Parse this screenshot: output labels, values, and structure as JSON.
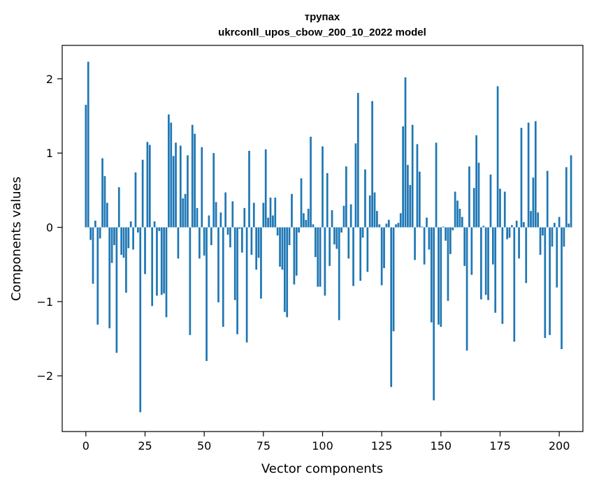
{
  "chart_data": {
    "type": "bar",
    "title_line1": "трупах",
    "title_line2": "ukrconll_upos_cbow_200_10_2022 model",
    "xlabel": "Vector components",
    "ylabel": "Components values",
    "xlim": [
      -10,
      210
    ],
    "ylim": [
      -2.75,
      2.45
    ],
    "xticks": [
      0,
      25,
      50,
      75,
      100,
      125,
      150,
      175,
      200
    ],
    "yticks": [
      2,
      1,
      0,
      -1,
      -2
    ],
    "ytick_labels": [
      "2",
      "1",
      "0",
      "−1",
      "−2"
    ],
    "bar_color": "#1f77b4",
    "values": [
      1.65,
      2.23,
      -0.17,
      -0.76,
      0.09,
      -1.31,
      -0.15,
      0.93,
      0.69,
      0.33,
      -1.36,
      -0.48,
      -0.24,
      -1.69,
      0.54,
      -0.37,
      -0.41,
      -0.88,
      -0.28,
      0.08,
      -0.3,
      0.74,
      -0.07,
      -2.49,
      0.91,
      -0.63,
      1.15,
      1.11,
      -1.06,
      0.08,
      -0.92,
      -0.05,
      -0.91,
      -0.89,
      -1.21,
      1.52,
      1.41,
      0.96,
      1.14,
      -0.42,
      1.1,
      0.39,
      0.45,
      0.97,
      -1.45,
      1.38,
      1.26,
      0.26,
      -0.42,
      1.08,
      -0.38,
      -1.8,
      0.16,
      -0.24,
      1.0,
      0.34,
      -1.01,
      0.2,
      -1.34,
      0.47,
      -0.1,
      -0.27,
      0.35,
      -0.98,
      -1.44,
      -0.02,
      -0.34,
      0.26,
      -1.55,
      1.03,
      -0.37,
      0.33,
      -0.57,
      -0.41,
      -0.96,
      0.33,
      1.05,
      0.13,
      0.4,
      0.16,
      0.4,
      -0.11,
      -0.53,
      -0.57,
      -1.14,
      -1.21,
      -0.24,
      0.45,
      -0.77,
      -0.65,
      -0.07,
      0.66,
      0.19,
      0.1,
      0.25,
      1.22,
      0.04,
      -0.4,
      -0.8,
      -0.8,
      1.09,
      -0.92,
      0.73,
      -0.52,
      0.23,
      -0.23,
      -0.29,
      -1.25,
      -0.07,
      0.29,
      0.82,
      -0.42,
      0.31,
      -0.79,
      1.13,
      1.81,
      -0.72,
      -0.14,
      0.78,
      -0.6,
      0.43,
      1.7,
      0.47,
      0.22,
      0.04,
      -0.78,
      -0.55,
      0.05,
      0.1,
      -2.15,
      -1.4,
      0.04,
      0.06,
      0.19,
      1.36,
      2.02,
      0.84,
      0.57,
      1.38,
      -0.44,
      1.12,
      0.75,
      0.01,
      -0.5,
      0.13,
      -0.3,
      -1.28,
      -2.33,
      1.14,
      -1.31,
      -1.34,
      0.01,
      -0.18,
      -0.99,
      -0.36,
      -0.04,
      0.48,
      0.36,
      0.25,
      0.14,
      -0.52,
      -1.66,
      0.82,
      -0.64,
      0.53,
      1.24,
      0.87,
      -0.97,
      0.02,
      -0.91,
      -0.98,
      0.71,
      -0.5,
      -1.15,
      1.9,
      0.52,
      -1.3,
      0.48,
      -0.16,
      -0.14,
      0.03,
      -1.54,
      0.09,
      -0.42,
      1.34,
      0.07,
      -0.75,
      1.41,
      0.22,
      0.67,
      1.43,
      0.2,
      -0.37,
      -0.11,
      -1.49,
      0.76,
      -1.45,
      -0.26,
      0.06,
      -0.81,
      0.14,
      -1.64,
      -0.26,
      0.81,
      0.05,
      0.97
    ]
  }
}
